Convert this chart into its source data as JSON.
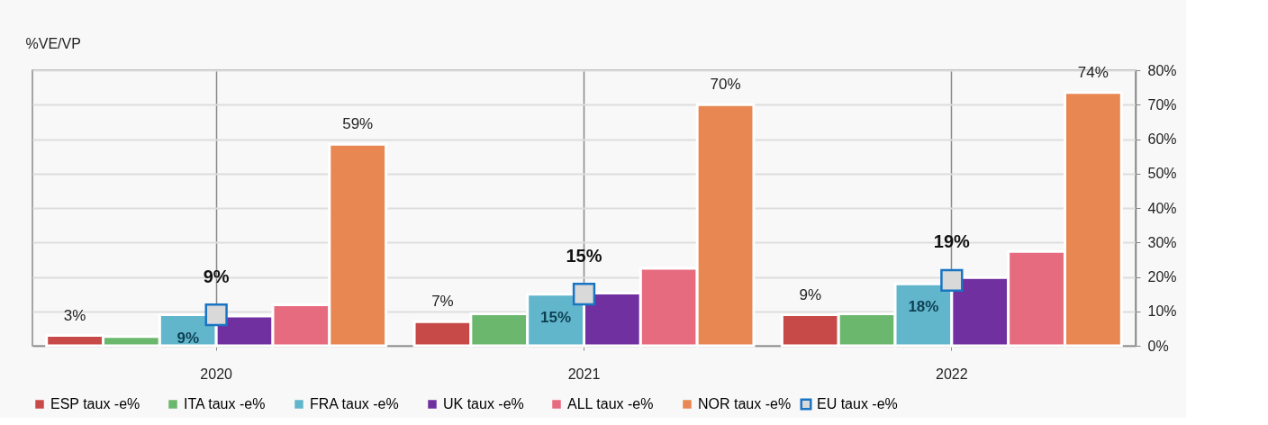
{
  "chart_data": {
    "type": "bar",
    "ylabel": "%VE/VP",
    "categories": [
      "2020",
      "2021",
      "2022"
    ],
    "series": [
      {
        "name": "ESP taux -e%",
        "color": "#c84a48",
        "values": [
          3,
          7,
          9
        ],
        "value_labels": [
          "3%",
          "7%",
          "9%"
        ]
      },
      {
        "name": "ITA taux -e%",
        "color": "#6cb76e",
        "values": [
          2.7,
          9.3,
          9.3
        ]
      },
      {
        "name": "FRA taux -e%",
        "color": "#62b6cc",
        "values": [
          9,
          15,
          18
        ],
        "value_labels": [
          "9%",
          "15%",
          "18%"
        ]
      },
      {
        "name": "UK taux -e%",
        "color": "#7030a0",
        "values": [
          8.6,
          15.3,
          19.8
        ]
      },
      {
        "name": "ALL taux -e%",
        "color": "#e76b7f",
        "values": [
          11.9,
          22.5,
          27.4
        ]
      },
      {
        "name": "NOR taux -e%",
        "color": "#e88752",
        "values": [
          58.5,
          70,
          73.5
        ],
        "value_labels": [
          "59%",
          "70%",
          "74%"
        ]
      },
      {
        "name": "EU taux -e%",
        "type": "scatter",
        "marker": "square",
        "color": "#1a74c4",
        "values": [
          9,
          15,
          19
        ],
        "value_labels": [
          "9%",
          "15%",
          "19%"
        ]
      }
    ],
    "ylim": [
      0,
      80
    ],
    "yticks": [
      {
        "value": 0,
        "label": "0%"
      },
      {
        "value": 10,
        "label": "10%"
      },
      {
        "value": 20,
        "label": "20%"
      },
      {
        "value": 30,
        "label": "30%"
      },
      {
        "value": 40,
        "label": "40%"
      },
      {
        "value": 50,
        "label": "50%"
      },
      {
        "value": 60,
        "label": "60%"
      },
      {
        "value": 70,
        "label": "70%"
      },
      {
        "value": 80,
        "label": "80%"
      }
    ],
    "grid": true,
    "legend": "bottom"
  }
}
